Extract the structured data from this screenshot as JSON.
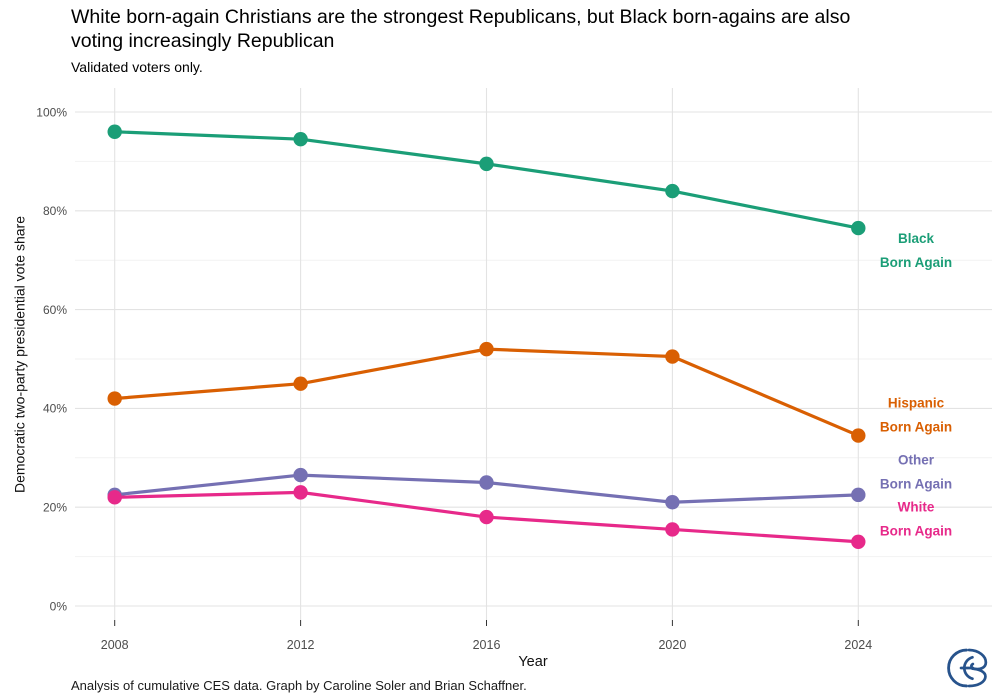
{
  "title_lines": [
    "White born-again Christians are the strongest Republicans, but Black born-agains are also",
    "voting increasingly Republican"
  ],
  "subtitle": "Validated voters only.",
  "caption": "Analysis of cumulative CES data. Graph by Caroline Soler and Brian Schaffner.",
  "logo": {
    "name": "ces-logo",
    "color": "#27538C"
  },
  "chart_data": {
    "type": "line",
    "x": [
      2008,
      2012,
      2016,
      2020,
      2024
    ],
    "xtick_labels": [
      "2008",
      "2012",
      "2016",
      "2020",
      "2024"
    ],
    "xlabel": "Year",
    "ylabel": "Democratic two-party presidential vote share",
    "ylim": [
      0,
      100
    ],
    "yticks": [
      0,
      20,
      40,
      60,
      80,
      100
    ],
    "ytick_labels": [
      "0%",
      "20%",
      "40%",
      "60%",
      "80%",
      "100%"
    ],
    "minor_yticks": [
      10,
      30,
      50,
      70,
      90
    ],
    "grid": "horizontal major + faint minor, vertical major at each labeled year, white background",
    "legend": "direct labels at right edge, colored to match lines",
    "marker": "filled circle",
    "series": [
      {
        "name": "Black Born Again",
        "label_lines": [
          "Black",
          "Born Again"
        ],
        "color": "#1B9E77",
        "values": [
          96.0,
          94.5,
          89.5,
          84.0,
          76.5
        ],
        "label_y": 72.0
      },
      {
        "name": "Hispanic Born Again",
        "label_lines": [
          "Hispanic",
          "Born Again"
        ],
        "color": "#D95F02",
        "values": [
          42.0,
          45.0,
          52.0,
          50.5,
          34.5
        ],
        "label_y": 38.7
      },
      {
        "name": "Other Born Again",
        "label_lines": [
          "Other",
          "Born Again"
        ],
        "color": "#7570B3",
        "values": [
          22.5,
          26.5,
          25.0,
          21.0,
          22.5
        ],
        "label_y": 27.1
      },
      {
        "name": "White Born Again",
        "label_lines": [
          "White",
          "Born Again"
        ],
        "color": "#E7298A",
        "values": [
          22.0,
          23.0,
          18.0,
          15.5,
          13.0
        ],
        "label_y": 17.6
      }
    ],
    "grid_major_color": "#e3e3e3",
    "grid_minor_color": "#f2f2f2",
    "tick_color": "#333333",
    "tick_label_color": "#4d4d4d"
  }
}
